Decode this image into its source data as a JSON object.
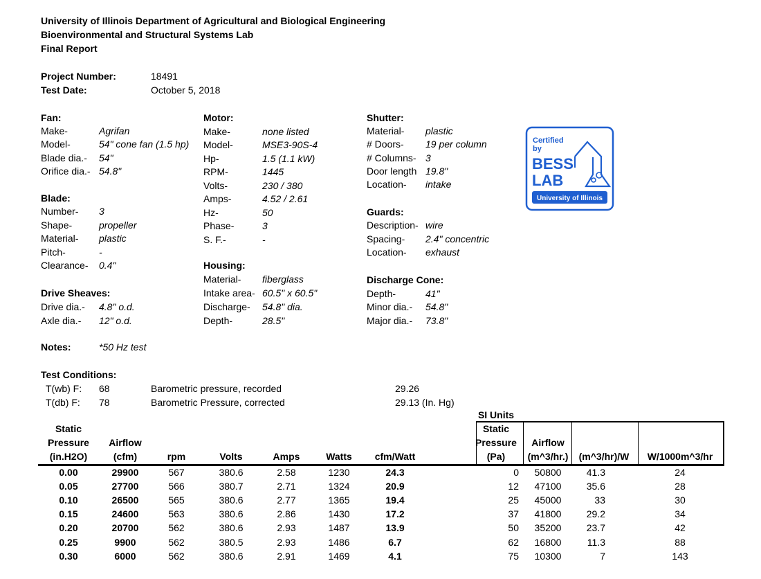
{
  "header": {
    "line1": "University of Illinois Department of Agricultural and Biological Engineering",
    "line2": "Bioenvironmental and Structural Systems Lab",
    "line3": "Final Report"
  },
  "project": {
    "number_label": "Project Number:",
    "number": "18491",
    "date_label": "Test  Date:",
    "date": "October 5, 2018"
  },
  "sections": {
    "fan": {
      "title": "Fan:",
      "items": [
        {
          "label": "Make-",
          "value": "Agrifan"
        },
        {
          "label": "Model-",
          "value": "54\" cone fan (1.5 hp)"
        },
        {
          "label": "Blade dia.-",
          "value": "54\""
        },
        {
          "label": "Orifice dia.-",
          "value": "54.8\""
        }
      ]
    },
    "blade": {
      "title": "Blade:",
      "items": [
        {
          "label": "Number-",
          "value": "3"
        },
        {
          "label": "Shape-",
          "value": "propeller"
        },
        {
          "label": "Material-",
          "value": "plastic"
        },
        {
          "label": "Pitch-",
          "value": "-"
        },
        {
          "label": "Clearance-",
          "value": "0.4\""
        }
      ]
    },
    "drive_sheaves": {
      "title": "Drive Sheaves:",
      "items": [
        {
          "label": "Drive dia.-",
          "value": "4.8\" o.d."
        },
        {
          "label": "Axle dia.-",
          "value": "12\" o.d."
        }
      ]
    },
    "motor": {
      "title": "Motor:",
      "items": [
        {
          "label": "Make-",
          "value": "none listed"
        },
        {
          "label": "Model-",
          "value": "MSE3-90S-4"
        },
        {
          "label": "Hp-",
          "value": "1.5 (1.1 kW)"
        },
        {
          "label": "RPM-",
          "value": "1445"
        },
        {
          "label": "Volts-",
          "value": "230 / 380"
        },
        {
          "label": "Amps-",
          "value": "4.52 / 2.61"
        },
        {
          "label": "Hz-",
          "value": "50"
        },
        {
          "label": "Phase-",
          "value": "3"
        },
        {
          "label": "S. F.-",
          "value": "-"
        }
      ]
    },
    "housing": {
      "title": "Housing:",
      "items": [
        {
          "label": "Material-",
          "value": "fiberglass"
        },
        {
          "label": "Intake area-",
          "value": "60.5\" x 60.5\""
        },
        {
          "label": "Discharge-",
          "value": "54.8\" dia."
        },
        {
          "label": "Depth-",
          "value": "28.5\""
        }
      ]
    },
    "shutter": {
      "title": "Shutter:",
      "items": [
        {
          "label": "Material-",
          "value": "plastic"
        },
        {
          "label": "# Doors-",
          "value": "19 per column"
        },
        {
          "label": "# Columns-",
          "value": "3"
        },
        {
          "label": "Door length",
          "value": "19.8\""
        },
        {
          "label": "Location-",
          "value": "intake"
        }
      ]
    },
    "guards": {
      "title": "Guards:",
      "items": [
        {
          "label": "Description-",
          "value": "wire"
        },
        {
          "label": "Spacing-",
          "value": "2.4\" concentric"
        },
        {
          "label": "Location-",
          "value": "exhaust"
        }
      ]
    },
    "discharge_cone": {
      "title": "Discharge Cone:",
      "items": [
        {
          "label": "Depth-",
          "value": "41\""
        },
        {
          "label": "Minor dia.-",
          "value": "54.8\""
        },
        {
          "label": "Major dia.-",
          "value": "73.8\""
        }
      ]
    }
  },
  "logo": {
    "line1": "Certified",
    "line2": "by",
    "line3": "BESS",
    "line4": "LAB",
    "banner": "University of Illinois",
    "color": "#1f5fd0"
  },
  "notes": {
    "label": "Notes:",
    "value": "*50 Hz test"
  },
  "test_conditions": {
    "title": "Test Conditions:",
    "rows": [
      {
        "label": "T(wb) F:",
        "value": "68",
        "desc": "Barometric pressure, recorded",
        "reading": "29.26"
      },
      {
        "label": "T(db) F:",
        "value": "78",
        "desc": "Barometric Pressure, corrected",
        "reading": "29.13 (In. Hg)"
      }
    ]
  },
  "table": {
    "si_title": "SI Units",
    "us_headers": [
      [
        "Static",
        "Pressure",
        "(in.H2O)"
      ],
      [
        "",
        "Airflow",
        "(cfm)"
      ],
      [
        "",
        "",
        "rpm"
      ],
      [
        "",
        "",
        "Volts"
      ],
      [
        "",
        "",
        "Amps"
      ],
      [
        "",
        "",
        "Watts"
      ],
      [
        "",
        "",
        "cfm/Watt"
      ]
    ],
    "si_headers": [
      [
        "Static",
        "Pressure",
        "(Pa)"
      ],
      [
        "",
        "Airflow",
        "(m^3/hr.)"
      ],
      [
        "",
        "",
        "(m^3/hr)/W"
      ],
      [
        "",
        "",
        "W/1000m^3/hr"
      ]
    ],
    "rows": [
      {
        "us": [
          "0.00",
          "29900",
          "567",
          "380.6",
          "2.58",
          "1230",
          "24.3"
        ],
        "si": [
          "0",
          "50800",
          "41.3",
          "24"
        ]
      },
      {
        "us": [
          "0.05",
          "27700",
          "566",
          "380.7",
          "2.71",
          "1324",
          "20.9"
        ],
        "si": [
          "12",
          "47100",
          "35.6",
          "28"
        ]
      },
      {
        "us": [
          "0.10",
          "26500",
          "565",
          "380.6",
          "2.77",
          "1365",
          "19.4"
        ],
        "si": [
          "25",
          "45000",
          "33",
          "30"
        ]
      },
      {
        "us": [
          "0.15",
          "24600",
          "563",
          "380.6",
          "2.86",
          "1430",
          "17.2"
        ],
        "si": [
          "37",
          "41800",
          "29.2",
          "34"
        ]
      },
      {
        "us": [
          "0.20",
          "20700",
          "562",
          "380.6",
          "2.93",
          "1487",
          "13.9"
        ],
        "si": [
          "50",
          "35200",
          "23.7",
          "42"
        ]
      },
      {
        "us": [
          "0.25",
          "9900",
          "562",
          "380.5",
          "2.93",
          "1486",
          "6.7"
        ],
        "si": [
          "62",
          "16800",
          "11.3",
          "88"
        ]
      },
      {
        "us": [
          "0.30",
          "6000",
          "562",
          "380.6",
          "2.91",
          "1469",
          "4.1"
        ],
        "si": [
          "75",
          "10300",
          "7",
          "143"
        ]
      }
    ]
  }
}
